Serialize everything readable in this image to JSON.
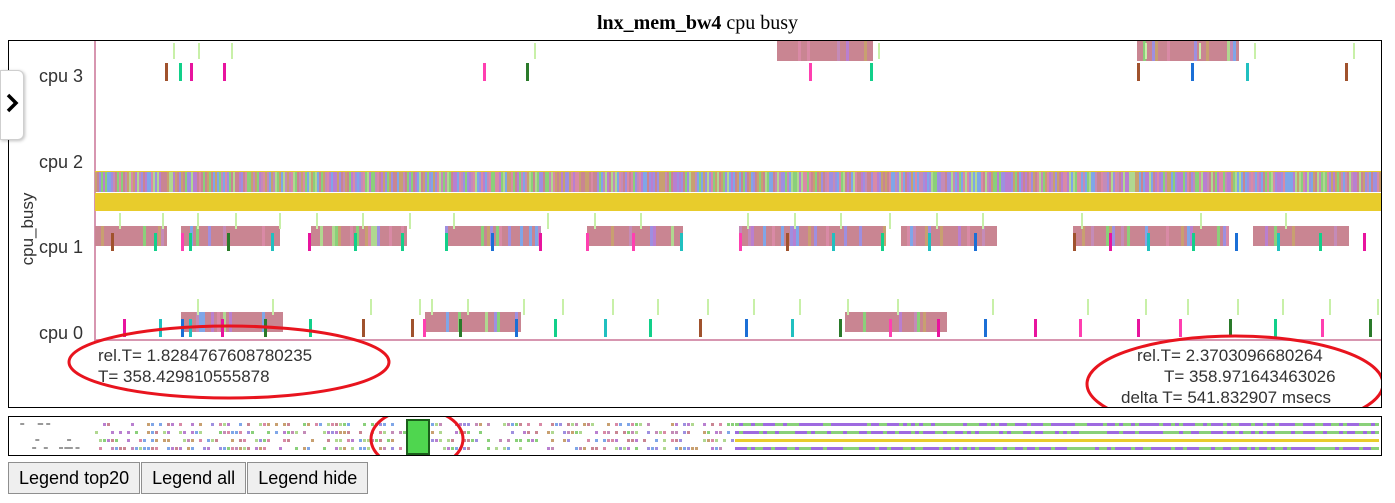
{
  "title": {
    "bold": "lnx_mem_bw4",
    "rest": "cpu busy"
  },
  "chart_data": {
    "type": "timeline",
    "ylabel": "cpu_busy",
    "rows": [
      "cpu 3",
      "cpu 2",
      "cpu 1",
      "cpu 0"
    ],
    "left_cursor": {
      "rel_t": "rel.T= 1.8284767608780235",
      "t": "T= 358.429810555878"
    },
    "right_cursor": {
      "rel_t": "rel.T= 2.3703096680264",
      "t": "T= 358.971643463026",
      "delta": "delta T= 541.832907  msecs"
    },
    "blocks": {
      "cpu 3": [
        [
          776,
          870
        ],
        [
          1136,
          1238
        ]
      ],
      "cpu 2": [
        [
          94,
          1382
        ]
      ],
      "cpu 1": [
        [
          94,
          165
        ],
        [
          180,
          278
        ],
        [
          310,
          404
        ],
        [
          444,
          538
        ],
        [
          586,
          680
        ],
        [
          738,
          884
        ],
        [
          900,
          994
        ],
        [
          1072,
          1228
        ],
        [
          1252,
          1346
        ]
      ],
      "cpu 0": [
        [
          180,
          280
        ],
        [
          424,
          518
        ],
        [
          844,
          944
        ]
      ]
    }
  },
  "colors": {
    "brush": "#4fd64f",
    "annotation": "#e8141e",
    "cpu2_band": "#e8cc2c"
  },
  "toolbar": {
    "legend_top20": "Legend top20",
    "legend_all": "Legend all",
    "legend_hide": "Legend hide"
  },
  "icons": {
    "toggle": "chevron-right-icon"
  }
}
